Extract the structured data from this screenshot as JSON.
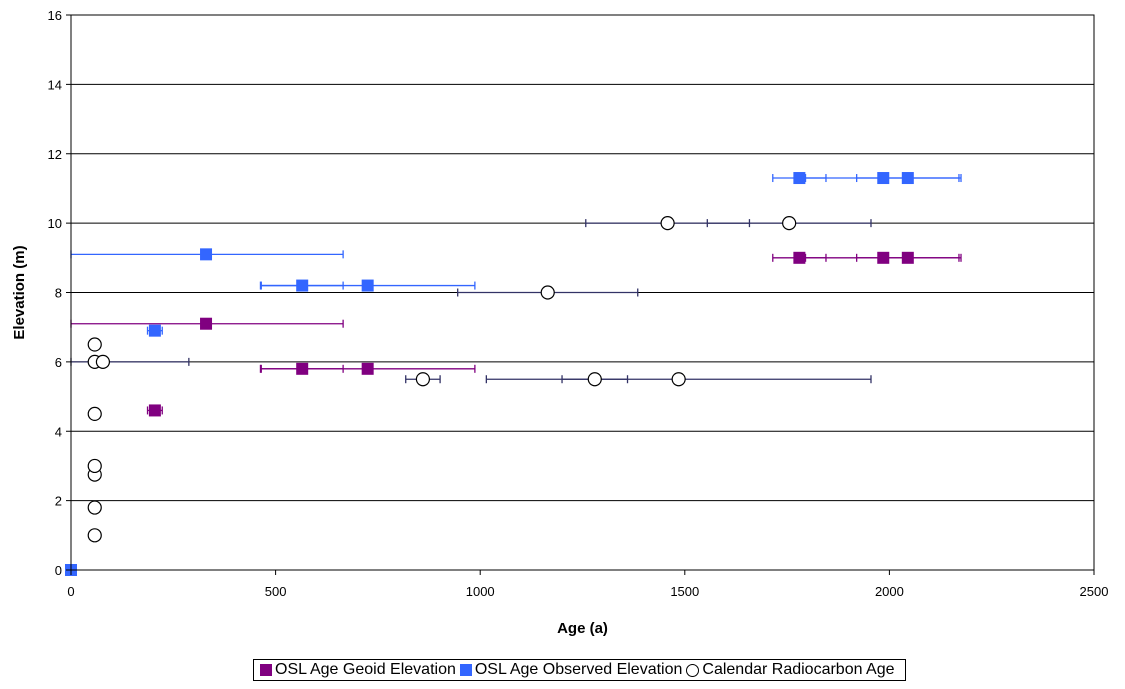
{
  "chart_data": {
    "type": "scatter",
    "xlabel": "Age (a)",
    "ylabel": "Elevation (m)",
    "xlim": [
      0,
      2500
    ],
    "ylim": [
      0,
      16
    ],
    "xticks": [
      "0",
      "500",
      "1000",
      "1500",
      "2000",
      "2500"
    ],
    "yticks": [
      "0",
      "2",
      "4",
      "6",
      "8",
      "10",
      "12",
      "14",
      "16"
    ],
    "grid": "horizontal",
    "legend_position": "bottom",
    "series": [
      {
        "name": "OSL Age Geoid Elevation",
        "marker": "square",
        "color": "#800080",
        "errorbar_color": "#800080",
        "points": [
          {
            "x": 205,
            "y": 4.6,
            "err": 18
          },
          {
            "x": 330,
            "y": 7.1,
            "err": 335
          },
          {
            "x": 565,
            "y": 5.8,
            "err": 100
          },
          {
            "x": 725,
            "y": 5.8,
            "err": 262
          },
          {
            "x": 1780,
            "y": 9.0,
            "err": 65
          },
          {
            "x": 1985,
            "y": 9.0,
            "err": 190
          },
          {
            "x": 2045,
            "y": 9.0,
            "err": 125
          }
        ]
      },
      {
        "name": "OSL Age Observed Elevation",
        "marker": "square",
        "color": "#3366FF",
        "errorbar_color": "#3366FF",
        "points": [
          {
            "x": 0,
            "y": 0,
            "err": 0
          },
          {
            "x": 205,
            "y": 6.9,
            "err": 18
          },
          {
            "x": 330,
            "y": 9.1,
            "err": 335
          },
          {
            "x": 565,
            "y": 8.2,
            "err": 100
          },
          {
            "x": 725,
            "y": 8.2,
            "err": 262
          },
          {
            "x": 1780,
            "y": 11.3,
            "err": 65
          },
          {
            "x": 1985,
            "y": 11.3,
            "err": 190
          },
          {
            "x": 2045,
            "y": 11.3,
            "err": 125
          }
        ]
      },
      {
        "name": "Calendar Radiocarbon Age",
        "marker": "circle",
        "color": "#000000",
        "errorbar_color": "#333366",
        "points": [
          {
            "x": 58,
            "y": 1.0,
            "err": 0
          },
          {
            "x": 58,
            "y": 1.8,
            "err": 0
          },
          {
            "x": 58,
            "y": 2.75,
            "err": 0
          },
          {
            "x": 58,
            "y": 3.0,
            "err": 0
          },
          {
            "x": 58,
            "y": 4.5,
            "err": 0
          },
          {
            "x": 58,
            "y": 6.0,
            "err": 0
          },
          {
            "x": 58,
            "y": 6.5,
            "err": 0
          },
          {
            "x": 78,
            "y": 6.0,
            "err": 210
          },
          {
            "x": 860,
            "y": 5.5,
            "err": 42
          },
          {
            "x": 1165,
            "y": 8.0,
            "err": 220
          },
          {
            "x": 1280,
            "y": 5.5,
            "err": 80
          },
          {
            "x": 1485,
            "y": 5.5,
            "err": 470
          },
          {
            "x": 1458,
            "y": 10.0,
            "err": 200
          },
          {
            "x": 1755,
            "y": 10.0,
            "err": 200
          }
        ]
      }
    ]
  }
}
